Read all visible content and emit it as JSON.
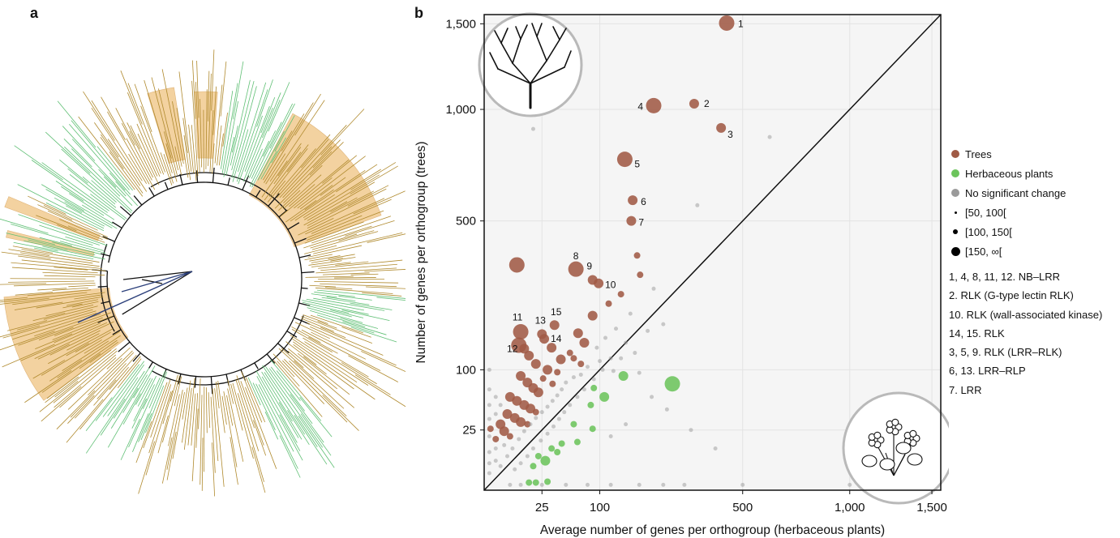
{
  "panel_a_label": "a",
  "panel_b_label": "b",
  "colors": {
    "trees": "#a05a45",
    "herbaceous": "#6cc45c",
    "no_change": "#9a9a9a",
    "phylo_tree_clade": "#b08a2e",
    "phylo_herb_clade": "#5fbf74",
    "phylo_highlight": "#f3d2a0",
    "phylo_backbone": "#111111",
    "phylo_outgroup": "#2b3f7a"
  },
  "legend": {
    "trees": "Trees",
    "herbaceous": "Herbaceous plants",
    "no_change": "No significant change",
    "size_small": "[50, 100[",
    "size_medium": "[100, 150[",
    "size_large": "[150, ∞["
  },
  "annotations": [
    "1, 4, 8, 11, 12. NB–LRR",
    "2. RLK (G-type lectin RLK)",
    "10. RLK (wall-associated kinase)",
    "14, 15. RLK",
    "3, 5, 9. RLK (LRR–RLK)",
    "6, 13. LRR–RLP",
    "7. LRR"
  ],
  "icons": [
    "tree-icon",
    "herb-icon"
  ],
  "chart_data": {
    "type": "scatter",
    "xlabel": "Average number of genes per orthogroup (herbaceous plants)",
    "ylabel": "Number of genes per orthogroup (trees)",
    "x_ticks": [
      {
        "v": 25,
        "label": "25"
      },
      {
        "v": 100,
        "label": "100"
      },
      {
        "v": 500,
        "label": "500"
      },
      {
        "v": 1000,
        "label": "1,000"
      },
      {
        "v": 1500,
        "label": "1,500"
      }
    ],
    "y_ticks": [
      {
        "v": 25,
        "label": "25"
      },
      {
        "v": 100,
        "label": "100"
      },
      {
        "v": 500,
        "label": "500"
      },
      {
        "v": 1000,
        "label": "1,000"
      },
      {
        "v": 1500,
        "label": "1,500"
      }
    ],
    "xlim": [
      0,
      1560
    ],
    "ylim": [
      0,
      1560
    ],
    "scale": "sqrt",
    "grid": true,
    "diagonal": true,
    "labeled_points": [
      {
        "label": "1",
        "x": 440,
        "y": 1505,
        "size": 3,
        "group": "trees"
      },
      {
        "label": "2",
        "x": 330,
        "y": 1030,
        "size": 2,
        "group": "trees"
      },
      {
        "label": "3",
        "x": 420,
        "y": 905,
        "size": 2,
        "group": "trees"
      },
      {
        "label": "4",
        "x": 215,
        "y": 1020,
        "size": 3,
        "group": "trees"
      },
      {
        "label": "5",
        "x": 148,
        "y": 755,
        "size": 3,
        "group": "trees"
      },
      {
        "label": "6",
        "x": 165,
        "y": 580,
        "size": 2,
        "group": "trees"
      },
      {
        "label": "7",
        "x": 162,
        "y": 500,
        "size": 2,
        "group": "trees"
      },
      {
        "label": "8",
        "x": 63,
        "y": 337,
        "size": 3,
        "group": "trees"
      },
      {
        "label": "9",
        "x": 88,
        "y": 305,
        "size": 2,
        "group": "trees"
      },
      {
        "label": "10",
        "x": 98,
        "y": 295,
        "size": 2,
        "group": "trees"
      },
      {
        "label": "11",
        "x": 10,
        "y": 173,
        "size": 3,
        "group": "trees"
      },
      {
        "label": "12",
        "x": 12,
        "y": 138,
        "size": 2,
        "group": "trees"
      },
      {
        "label": "13",
        "x": 25,
        "y": 168,
        "size": 2,
        "group": "trees"
      },
      {
        "label": "14",
        "x": 27,
        "y": 158,
        "size": 2,
        "group": "trees"
      },
      {
        "label": "15",
        "x": 37,
        "y": 188,
        "size": 2,
        "group": "trees"
      }
    ],
    "points": [
      {
        "x": 8,
        "y": 350,
        "size": 3,
        "group": "trees"
      },
      {
        "x": 9,
        "y": 145,
        "size": 3,
        "group": "trees"
      },
      {
        "x": 15,
        "y": 125,
        "size": 2,
        "group": "trees"
      },
      {
        "x": 34,
        "y": 140,
        "size": 2,
        "group": "trees"
      },
      {
        "x": 44,
        "y": 118,
        "size": 2,
        "group": "trees"
      },
      {
        "x": 66,
        "y": 170,
        "size": 2,
        "group": "trees"
      },
      {
        "x": 75,
        "y": 150,
        "size": 2,
        "group": "trees"
      },
      {
        "x": 88,
        "y": 210,
        "size": 2,
        "group": "trees"
      },
      {
        "x": 116,
        "y": 240,
        "size": 1,
        "group": "trees"
      },
      {
        "x": 140,
        "y": 265,
        "size": 1,
        "group": "trees"
      },
      {
        "x": 175,
        "y": 380,
        "size": 1,
        "group": "trees"
      },
      {
        "x": 182,
        "y": 320,
        "size": 1,
        "group": "trees"
      },
      {
        "x": 20,
        "y": 110,
        "size": 2,
        "group": "trees"
      },
      {
        "x": 30,
        "y": 100,
        "size": 2,
        "group": "trees"
      },
      {
        "x": 40,
        "y": 96,
        "size": 1,
        "group": "trees"
      },
      {
        "x": 55,
        "y": 130,
        "size": 1,
        "group": "trees"
      },
      {
        "x": 60,
        "y": 120,
        "size": 1,
        "group": "trees"
      },
      {
        "x": 70,
        "y": 110,
        "size": 1,
        "group": "trees"
      },
      {
        "x": 10,
        "y": 90,
        "size": 2,
        "group": "trees"
      },
      {
        "x": 14,
        "y": 80,
        "size": 2,
        "group": "trees"
      },
      {
        "x": 18,
        "y": 72,
        "size": 2,
        "group": "trees"
      },
      {
        "x": 22,
        "y": 66,
        "size": 2,
        "group": "trees"
      },
      {
        "x": 26,
        "y": 86,
        "size": 1,
        "group": "trees"
      },
      {
        "x": 35,
        "y": 78,
        "size": 1,
        "group": "trees"
      },
      {
        "x": 5,
        "y": 60,
        "size": 2,
        "group": "trees"
      },
      {
        "x": 8,
        "y": 55,
        "size": 2,
        "group": "trees"
      },
      {
        "x": 12,
        "y": 50,
        "size": 2,
        "group": "trees"
      },
      {
        "x": 16,
        "y": 46,
        "size": 2,
        "group": "trees"
      },
      {
        "x": 20,
        "y": 42,
        "size": 1,
        "group": "trees"
      },
      {
        "x": 4,
        "y": 40,
        "size": 2,
        "group": "trees"
      },
      {
        "x": 7,
        "y": 36,
        "size": 2,
        "group": "trees"
      },
      {
        "x": 10,
        "y": 32,
        "size": 2,
        "group": "trees"
      },
      {
        "x": 14,
        "y": 30,
        "size": 1,
        "group": "trees"
      },
      {
        "x": 2,
        "y": 30,
        "size": 2,
        "group": "trees"
      },
      {
        "x": 3,
        "y": 24,
        "size": 2,
        "group": "trees"
      },
      {
        "x": 5,
        "y": 20,
        "size": 1,
        "group": "trees"
      },
      {
        "x": 0.3,
        "y": 26,
        "size": 1,
        "group": "trees"
      },
      {
        "x": 1,
        "y": 18,
        "size": 1,
        "group": "trees"
      },
      {
        "x": 265,
        "y": 78,
        "size": 3,
        "group": "herbaceous"
      },
      {
        "x": 145,
        "y": 90,
        "size": 2,
        "group": "herbaceous"
      },
      {
        "x": 90,
        "y": 72,
        "size": 1,
        "group": "herbaceous"
      },
      {
        "x": 108,
        "y": 60,
        "size": 2,
        "group": "herbaceous"
      },
      {
        "x": 85,
        "y": 50,
        "size": 1,
        "group": "herbaceous"
      },
      {
        "x": 60,
        "y": 30,
        "size": 1,
        "group": "herbaceous"
      },
      {
        "x": 88,
        "y": 26,
        "size": 1,
        "group": "herbaceous"
      },
      {
        "x": 65,
        "y": 16,
        "size": 1,
        "group": "herbaceous"
      },
      {
        "x": 45,
        "y": 15,
        "size": 1,
        "group": "herbaceous"
      },
      {
        "x": 40,
        "y": 10,
        "size": 1,
        "group": "herbaceous"
      },
      {
        "x": 34,
        "y": 12,
        "size": 1,
        "group": "herbaceous"
      },
      {
        "x": 28,
        "y": 6,
        "size": 2,
        "group": "herbaceous"
      },
      {
        "x": 22,
        "y": 8,
        "size": 1,
        "group": "herbaceous"
      },
      {
        "x": 18,
        "y": 4,
        "size": 1,
        "group": "herbaceous"
      },
      {
        "x": 30,
        "y": 0.5,
        "size": 1,
        "group": "herbaceous"
      },
      {
        "x": 20,
        "y": 0.4,
        "size": 1,
        "group": "herbaceous"
      },
      {
        "x": 15,
        "y": 0.4,
        "size": 1,
        "group": "herbaceous"
      },
      {
        "x": 18,
        "y": 900,
        "size": 0,
        "group": "none"
      },
      {
        "x": 610,
        "y": 860,
        "size": 0,
        "group": "none"
      },
      {
        "x": 340,
        "y": 560,
        "size": 0,
        "group": "none"
      },
      {
        "x": 215,
        "y": 280,
        "size": 0,
        "group": "none"
      },
      {
        "x": 160,
        "y": 215,
        "size": 0,
        "group": "none"
      },
      {
        "x": 130,
        "y": 180,
        "size": 0,
        "group": "none"
      },
      {
        "x": 110,
        "y": 160,
        "size": 0,
        "group": "none"
      },
      {
        "x": 95,
        "y": 140,
        "size": 0,
        "group": "none"
      },
      {
        "x": 150,
        "y": 150,
        "size": 0,
        "group": "none"
      },
      {
        "x": 120,
        "y": 120,
        "size": 0,
        "group": "none"
      },
      {
        "x": 100,
        "y": 115,
        "size": 0,
        "group": "none"
      },
      {
        "x": 80,
        "y": 105,
        "size": 0,
        "group": "none"
      },
      {
        "x": 70,
        "y": 92,
        "size": 0,
        "group": "none"
      },
      {
        "x": 60,
        "y": 88,
        "size": 0,
        "group": "none"
      },
      {
        "x": 50,
        "y": 80,
        "size": 0,
        "group": "none"
      },
      {
        "x": 45,
        "y": 70,
        "size": 0,
        "group": "none"
      },
      {
        "x": 40,
        "y": 62,
        "size": 0,
        "group": "none"
      },
      {
        "x": 35,
        "y": 55,
        "size": 0,
        "group": "none"
      },
      {
        "x": 30,
        "y": 48,
        "size": 0,
        "group": "none"
      },
      {
        "x": 25,
        "y": 42,
        "size": 0,
        "group": "none"
      },
      {
        "x": 20,
        "y": 36,
        "size": 0,
        "group": "none"
      },
      {
        "x": 16,
        "y": 30,
        "size": 0,
        "group": "none"
      },
      {
        "x": 12,
        "y": 24,
        "size": 0,
        "group": "none"
      },
      {
        "x": 9,
        "y": 18,
        "size": 0,
        "group": "none"
      },
      {
        "x": 6,
        "y": 12,
        "size": 0,
        "group": "none"
      },
      {
        "x": 4,
        "y": 8,
        "size": 0,
        "group": "none"
      },
      {
        "x": 2,
        "y": 4,
        "size": 0,
        "group": "none"
      },
      {
        "x": 75,
        "y": 70,
        "size": 0,
        "group": "none"
      },
      {
        "x": 65,
        "y": 60,
        "size": 0,
        "group": "none"
      },
      {
        "x": 55,
        "y": 50,
        "size": 0,
        "group": "none"
      },
      {
        "x": 48,
        "y": 42,
        "size": 0,
        "group": "none"
      },
      {
        "x": 42,
        "y": 35,
        "size": 0,
        "group": "none"
      },
      {
        "x": 36,
        "y": 28,
        "size": 0,
        "group": "none"
      },
      {
        "x": 30,
        "y": 22,
        "size": 0,
        "group": "none"
      },
      {
        "x": 24,
        "y": 17,
        "size": 0,
        "group": "none"
      },
      {
        "x": 18,
        "y": 12,
        "size": 0,
        "group": "none"
      },
      {
        "x": 14,
        "y": 8,
        "size": 0,
        "group": "none"
      },
      {
        "x": 10,
        "y": 5,
        "size": 0,
        "group": "none"
      },
      {
        "x": 7,
        "y": 3,
        "size": 0,
        "group": "none"
      },
      {
        "x": 90,
        "y": 85,
        "size": 0,
        "group": "none"
      },
      {
        "x": 105,
        "y": 100,
        "size": 0,
        "group": "none"
      },
      {
        "x": 125,
        "y": 98,
        "size": 0,
        "group": "none"
      },
      {
        "x": 140,
        "y": 120,
        "size": 0,
        "group": "none"
      },
      {
        "x": 170,
        "y": 130,
        "size": 0,
        "group": "none"
      },
      {
        "x": 200,
        "y": 175,
        "size": 0,
        "group": "none"
      },
      {
        "x": 240,
        "y": 190,
        "size": 0,
        "group": "none"
      },
      {
        "x": 180,
        "y": 95,
        "size": 0,
        "group": "none"
      },
      {
        "x": 210,
        "y": 60,
        "size": 0,
        "group": "none"
      },
      {
        "x": 250,
        "y": 45,
        "size": 0,
        "group": "none"
      },
      {
        "x": 320,
        "y": 25,
        "size": 0,
        "group": "none"
      },
      {
        "x": 400,
        "y": 12,
        "size": 0,
        "group": "none"
      },
      {
        "x": 150,
        "y": 30,
        "size": 0,
        "group": "none"
      },
      {
        "x": 120,
        "y": 20,
        "size": 0,
        "group": "none"
      },
      {
        "x": 0.2,
        "y": 100,
        "size": 0,
        "group": "none"
      },
      {
        "x": 0.2,
        "y": 70,
        "size": 0,
        "group": "none"
      },
      {
        "x": 0.2,
        "y": 50,
        "size": 0,
        "group": "none"
      },
      {
        "x": 0.2,
        "y": 35,
        "size": 0,
        "group": "none"
      },
      {
        "x": 0.2,
        "y": 20,
        "size": 0,
        "group": "none"
      },
      {
        "x": 0.2,
        "y": 10,
        "size": 0,
        "group": "none"
      },
      {
        "x": 0.2,
        "y": 5,
        "size": 0,
        "group": "none"
      },
      {
        "x": 0.2,
        "y": 2,
        "size": 0,
        "group": "none"
      },
      {
        "x": 1,
        "y": 60,
        "size": 0,
        "group": "none"
      },
      {
        "x": 1,
        "y": 40,
        "size": 0,
        "group": "none"
      },
      {
        "x": 1,
        "y": 12,
        "size": 0,
        "group": "none"
      },
      {
        "x": 1,
        "y": 6,
        "size": 0,
        "group": "none"
      },
      {
        "x": 2,
        "y": 50,
        "size": 0,
        "group": "none"
      },
      {
        "x": 3,
        "y": 14,
        "size": 0,
        "group": "none"
      },
      {
        "x": 5,
        "y": 0.2,
        "size": 0,
        "group": "none"
      },
      {
        "x": 10,
        "y": 0.2,
        "size": 0,
        "group": "none"
      },
      {
        "x": 25,
        "y": 0.2,
        "size": 0,
        "group": "none"
      },
      {
        "x": 50,
        "y": 0.2,
        "size": 0,
        "group": "none"
      },
      {
        "x": 80,
        "y": 0.2,
        "size": 0,
        "group": "none"
      },
      {
        "x": 120,
        "y": 0.2,
        "size": 0,
        "group": "none"
      },
      {
        "x": 180,
        "y": 0.2,
        "size": 0,
        "group": "none"
      },
      {
        "x": 240,
        "y": 0.2,
        "size": 0,
        "group": "none"
      },
      {
        "x": 300,
        "y": 0.2,
        "size": 0,
        "group": "none"
      },
      {
        "x": 500,
        "y": 0.2,
        "size": 0,
        "group": "none"
      },
      {
        "x": 1000,
        "y": 0.2,
        "size": 0,
        "group": "none"
      }
    ]
  }
}
